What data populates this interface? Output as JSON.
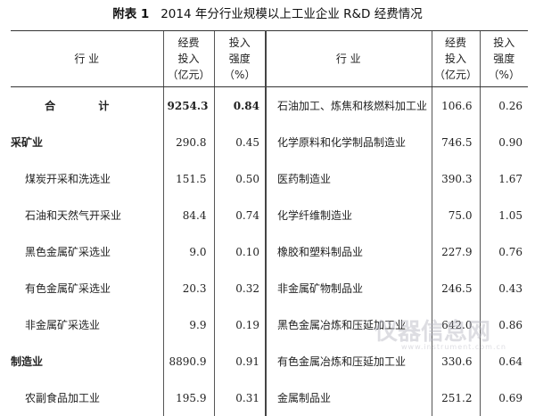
{
  "title": {
    "prefix": "附表 1",
    "text": "2014 年分行业规模以上工业企业 R&D 经费情况"
  },
  "headers": {
    "industry": "行 业",
    "expenditure": [
      "经费",
      "投入",
      "（亿元）"
    ],
    "intensity": [
      "投入",
      "强度",
      "（%）"
    ]
  },
  "left_rows": [
    {
      "name": "合  计",
      "expenditure": "9254.3",
      "intensity": "0.84",
      "type": "total"
    },
    {
      "name": "采矿业",
      "expenditure": "290.8",
      "intensity": "0.45",
      "type": "group"
    },
    {
      "name": "煤炭开采和洗选业",
      "expenditure": "151.5",
      "intensity": "0.50",
      "type": "sub"
    },
    {
      "name": "石油和天然气开采业",
      "expenditure": "84.4",
      "intensity": "0.74",
      "type": "sub"
    },
    {
      "name": "黑色金属矿采选业",
      "expenditure": "9.0",
      "intensity": "0.10",
      "type": "sub"
    },
    {
      "name": "有色金属矿采选业",
      "expenditure": "20.3",
      "intensity": "0.32",
      "type": "sub"
    },
    {
      "name": "非金属矿采选业",
      "expenditure": "9.9",
      "intensity": "0.19",
      "type": "sub"
    },
    {
      "name": "制造业",
      "expenditure": "8890.9",
      "intensity": "0.91",
      "type": "group"
    },
    {
      "name": "农副食品加工业",
      "expenditure": "195.9",
      "intensity": "0.31",
      "type": "sub"
    }
  ],
  "right_rows": [
    {
      "name": "石油加工、炼焦和核燃料加工业",
      "expenditure": "106.6",
      "intensity": "0.26"
    },
    {
      "name": "化学原料和化学制品制造业",
      "expenditure": "746.5",
      "intensity": "0.90"
    },
    {
      "name": "医药制造业",
      "expenditure": "390.3",
      "intensity": "1.67"
    },
    {
      "name": "化学纤维制造业",
      "expenditure": "75.0",
      "intensity": "1.05"
    },
    {
      "name": "橡胶和塑料制品业",
      "expenditure": "227.9",
      "intensity": "0.76"
    },
    {
      "name": "非金属矿物制品业",
      "expenditure": "246.5",
      "intensity": "0.43"
    },
    {
      "name": "黑色金属冶炼和压延加工业",
      "expenditure": "642.0",
      "intensity": "0.86"
    },
    {
      "name": "有色金属冶炼和压延加工业",
      "expenditure": "330.6",
      "intensity": "0.64"
    },
    {
      "name": "金属制品业",
      "expenditure": "251.2",
      "intensity": "0.69"
    }
  ],
  "watermark": {
    "text": "仪器信息网",
    "url": "www.instrument.com.cn"
  }
}
